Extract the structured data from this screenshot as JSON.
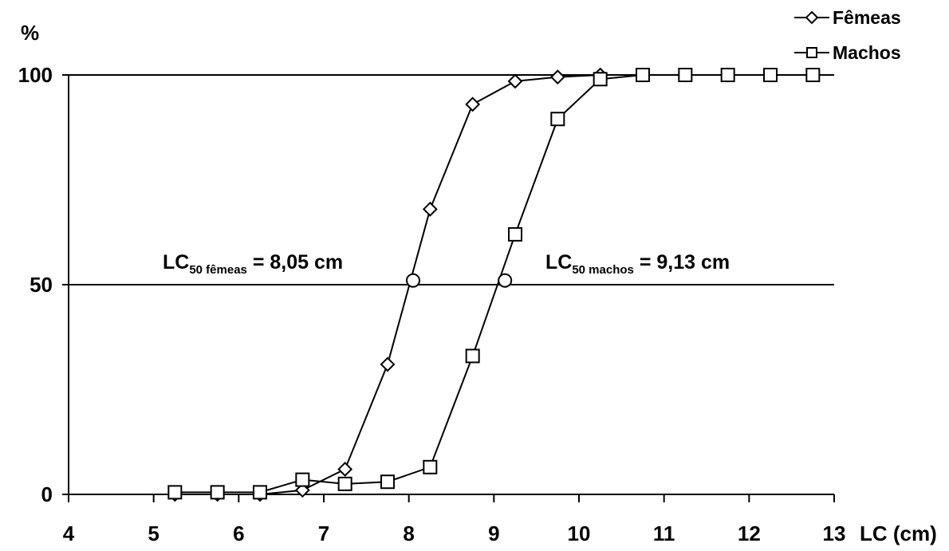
{
  "chart_data": {
    "type": "line",
    "ylabel": "%",
    "xlabel": "LC (cm)",
    "xlim": [
      4,
      13
    ],
    "ylim": [
      0,
      100
    ],
    "xticks": [
      4,
      5,
      6,
      7,
      8,
      9,
      10,
      11,
      12,
      13
    ],
    "yticks": [
      0,
      50,
      100
    ],
    "grid": "horizontal lines at 50 and 100",
    "legend": {
      "placement": "top-right"
    },
    "series": [
      {
        "name": "Fêmeas",
        "marker": "diamond",
        "x": [
          5.25,
          5.75,
          6.25,
          6.75,
          7.25,
          7.75,
          8.25,
          8.75,
          9.25,
          9.75,
          10.25,
          10.75,
          11.25,
          11.75
        ],
        "y": [
          0,
          0,
          0,
          1,
          6,
          31,
          68,
          93,
          98.5,
          99.5,
          100,
          100,
          100,
          100
        ]
      },
      {
        "name": "Machos",
        "marker": "square",
        "x": [
          5.25,
          5.75,
          6.25,
          6.75,
          7.25,
          7.75,
          8.25,
          8.75,
          9.25,
          9.75,
          10.25,
          10.75,
          11.25,
          11.75,
          12.25,
          12.75
        ],
        "y": [
          0.5,
          0.5,
          0.5,
          3.5,
          2.5,
          3,
          6.5,
          33,
          62,
          89.5,
          99,
          100,
          100,
          100,
          100,
          100
        ]
      }
    ],
    "annotations": [
      {
        "prefix": "LC",
        "sub": "50 fêmeas",
        "suffix": " = 8,05 cm",
        "x": 8.05,
        "y": 51
      },
      {
        "prefix": "LC",
        "sub": "50 machos",
        "suffix": " = 9,13 cm",
        "x": 9.13,
        "y": 51
      }
    ]
  }
}
